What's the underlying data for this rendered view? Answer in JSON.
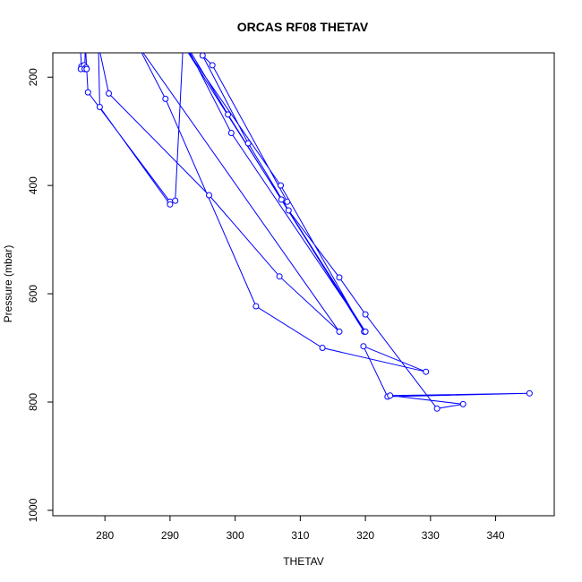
{
  "chart_data": {
    "type": "line",
    "title": "ORCAS RF08 THETAV",
    "xlabel": "THETAV",
    "ylabel": "Pressure (mbar)",
    "xlim": [
      272,
      349
    ],
    "ylim": [
      1010,
      155
    ],
    "y_inverted": true,
    "xticks": [
      280,
      290,
      300,
      310,
      320,
      330,
      340
    ],
    "yticks": [
      200,
      400,
      600,
      800,
      1000
    ],
    "grid": false,
    "legend": "none",
    "series": [
      {
        "color": "#0000ff",
        "marker": "circle",
        "points": [
          [
            276.2,
            140
          ],
          [
            276.4,
            180
          ],
          [
            276.3,
            185
          ],
          [
            276.8,
            178
          ],
          [
            277.1,
            182
          ],
          [
            276.9,
            185
          ],
          [
            277.0,
            140
          ],
          [
            277.2,
            185
          ],
          [
            277.4,
            228
          ],
          [
            290.0,
            430
          ],
          [
            290.0,
            435
          ],
          [
            279.2,
            255
          ],
          [
            279.0,
            140
          ],
          [
            280.6,
            230
          ],
          [
            296.0,
            418
          ],
          [
            306.8,
            568
          ],
          [
            316.0,
            670
          ],
          [
            285.0,
            140
          ],
          [
            289.3,
            240
          ],
          [
            303.2,
            623
          ],
          [
            313.4,
            700
          ],
          [
            329.3,
            744
          ],
          [
            319.7,
            697
          ],
          [
            323.4,
            790
          ],
          [
            345.2,
            784
          ],
          [
            323.8,
            788
          ],
          [
            335.0,
            804
          ],
          [
            331.0,
            812
          ],
          [
            320.0,
            638
          ],
          [
            316.0,
            570
          ],
          [
            308.2,
            446
          ],
          [
            302.0,
            322
          ],
          [
            295.0,
            160
          ],
          [
            296.5,
            178
          ],
          [
            308.0,
            430
          ],
          [
            307.1,
            426
          ],
          [
            292.0,
            140
          ],
          [
            307.0,
            400
          ],
          [
            319.8,
            670
          ],
          [
            298.9,
            269
          ],
          [
            292.0,
            130
          ],
          [
            299.4,
            303
          ],
          [
            320.0,
            670
          ],
          [
            292.0,
            140
          ],
          [
            290.8,
            428
          ]
        ]
      }
    ]
  }
}
